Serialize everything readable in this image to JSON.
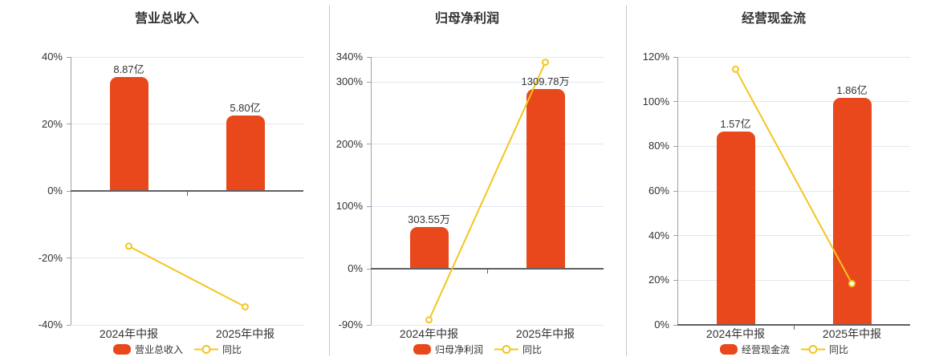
{
  "colors": {
    "bar": "#e8481c",
    "line": "#f4c51e",
    "grid": "#e2e6f0",
    "axis": "#9aa0a6",
    "zero_line": "#5c6166",
    "text": "#333333",
    "divider": "#c9c9c4",
    "background": "#ffffff",
    "marker_fill": "#ffffff"
  },
  "chart_data": [
    {
      "type": "bar",
      "title": "营业总收入",
      "categories": [
        "2024年中报",
        "2025年中报"
      ],
      "y_axis": {
        "min": -40,
        "max": 40,
        "tick_values": [
          40,
          20,
          0,
          -20,
          -40
        ],
        "tick_labels": [
          "40%",
          "20%",
          "0%",
          "-20%",
          "-40%"
        ],
        "grid": true
      },
      "series": [
        {
          "name": "营业总收入",
          "type": "bar",
          "value_labels": [
            "8.87亿",
            "5.80亿"
          ],
          "plotted_pct": [
            34.1,
            22.5
          ]
        },
        {
          "name": "同比",
          "type": "line",
          "values_pct": [
            -16.5,
            -34.6
          ]
        }
      ],
      "legend_position": "bottom"
    },
    {
      "type": "bar",
      "title": "归母净利润",
      "categories": [
        "2024年中报",
        "2025年中报"
      ],
      "y_axis": {
        "min": -90,
        "max": 340,
        "tick_values": [
          340,
          300,
          200,
          100,
          0,
          -90
        ],
        "tick_labels": [
          "340%",
          "300%",
          "200%",
          "100%",
          "0%",
          "-90%"
        ],
        "grid": true
      },
      "series": [
        {
          "name": "归母净利润",
          "type": "bar",
          "value_labels": [
            "303.55万",
            "1309.78万"
          ],
          "plotted_pct": [
            67,
            288
          ]
        },
        {
          "name": "同比",
          "type": "line",
          "values_pct": [
            -82,
            331.5
          ]
        }
      ],
      "legend_position": "bottom"
    },
    {
      "type": "bar",
      "title": "经营现金流",
      "categories": [
        "2024年中报",
        "2025年中报"
      ],
      "y_axis": {
        "min": 0,
        "max": 120,
        "tick_values": [
          120,
          100,
          80,
          60,
          40,
          20,
          0
        ],
        "tick_labels": [
          "120%",
          "100%",
          "80%",
          "60%",
          "40%",
          "20%",
          "0%"
        ],
        "grid": true
      },
      "series": [
        {
          "name": "经营现金流",
          "type": "bar",
          "value_labels": [
            "1.57亿",
            "1.86亿"
          ],
          "plotted_pct": [
            86.5,
            101.7
          ]
        },
        {
          "name": "同比",
          "type": "line",
          "values_pct": [
            114.5,
            18.5
          ]
        }
      ],
      "legend_position": "bottom"
    }
  ]
}
